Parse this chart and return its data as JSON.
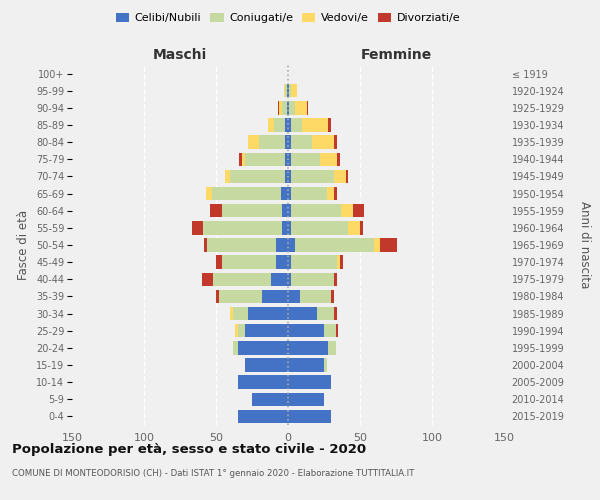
{
  "age_groups": [
    "0-4",
    "5-9",
    "10-14",
    "15-19",
    "20-24",
    "25-29",
    "30-34",
    "35-39",
    "40-44",
    "45-49",
    "50-54",
    "55-59",
    "60-64",
    "65-69",
    "70-74",
    "75-79",
    "80-84",
    "85-89",
    "90-94",
    "95-99",
    "100+"
  ],
  "birth_years": [
    "2015-2019",
    "2010-2014",
    "2005-2009",
    "2000-2004",
    "1995-1999",
    "1990-1994",
    "1985-1989",
    "1980-1984",
    "1975-1979",
    "1970-1974",
    "1965-1969",
    "1960-1964",
    "1955-1959",
    "1950-1954",
    "1945-1949",
    "1940-1944",
    "1935-1939",
    "1930-1934",
    "1925-1929",
    "1920-1924",
    "≤ 1919"
  ],
  "male_celibe": [
    35,
    25,
    35,
    30,
    35,
    30,
    28,
    18,
    12,
    8,
    8,
    4,
    4,
    5,
    2,
    2,
    2,
    2,
    1,
    1,
    0
  ],
  "male_coniugato": [
    0,
    0,
    0,
    0,
    3,
    5,
    10,
    30,
    40,
    38,
    48,
    55,
    42,
    48,
    38,
    28,
    18,
    8,
    3,
    1,
    0
  ],
  "male_vedovo": [
    0,
    0,
    0,
    0,
    0,
    2,
    2,
    0,
    0,
    0,
    0,
    0,
    0,
    4,
    4,
    2,
    8,
    4,
    2,
    1,
    0
  ],
  "male_divorziato": [
    0,
    0,
    0,
    0,
    0,
    0,
    0,
    2,
    8,
    4,
    2,
    8,
    8,
    0,
    0,
    2,
    0,
    0,
    1,
    0,
    0
  ],
  "female_nubile": [
    30,
    25,
    30,
    25,
    28,
    25,
    20,
    8,
    2,
    2,
    5,
    2,
    2,
    2,
    2,
    2,
    2,
    2,
    1,
    1,
    0
  ],
  "female_coniugata": [
    0,
    0,
    0,
    2,
    5,
    8,
    12,
    22,
    30,
    32,
    55,
    40,
    35,
    25,
    30,
    20,
    15,
    8,
    4,
    1,
    0
  ],
  "female_vedova": [
    0,
    0,
    0,
    0,
    0,
    0,
    0,
    0,
    0,
    2,
    4,
    8,
    8,
    5,
    8,
    12,
    15,
    18,
    8,
    4,
    0
  ],
  "female_divorziata": [
    0,
    0,
    0,
    0,
    0,
    2,
    2,
    2,
    2,
    2,
    12,
    2,
    8,
    2,
    2,
    2,
    2,
    2,
    1,
    0,
    0
  ],
  "colors": {
    "celibe": "#4472c4",
    "coniugato": "#c5d9a0",
    "vedovo": "#ffd966",
    "divorziato": "#c0392b"
  },
  "title": "Popolazione per età, sesso e stato civile - 2020",
  "subtitle": "COMUNE DI MONTEODORISIO (CH) - Dati ISTAT 1° gennaio 2020 - Elaborazione TUTTITALIA.IT",
  "xlabel_left": "Maschi",
  "xlabel_right": "Femmine",
  "ylabel_left": "Fasce di età",
  "ylabel_right": "Anni di nascita",
  "xlim": 150,
  "background_color": "#f0f0f0"
}
